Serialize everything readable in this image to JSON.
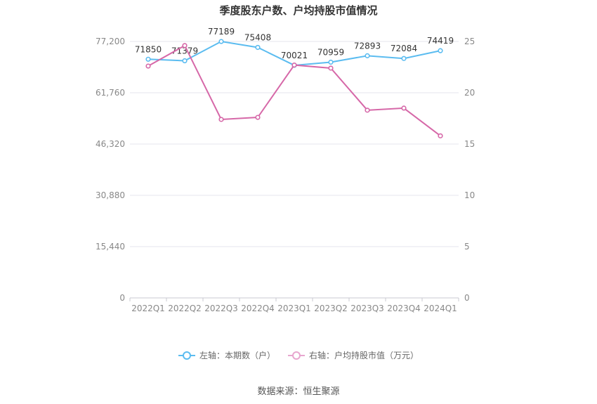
{
  "chart_data": {
    "type": "line",
    "title": "季度股东户数、户均持股市值情况",
    "categories": [
      "2022Q1",
      "2022Q2",
      "2022Q3",
      "2022Q4",
      "2023Q1",
      "2023Q2",
      "2023Q3",
      "2023Q4",
      "2024Q1"
    ],
    "left_axis": {
      "ticks": [
        "0",
        "15,440",
        "30,880",
        "46,320",
        "61,760",
        "77,200"
      ],
      "ylim": [
        0,
        77200
      ]
    },
    "right_axis": {
      "ticks": [
        "0",
        "5",
        "10",
        "15",
        "20",
        "25"
      ],
      "ylim": [
        0,
        25
      ]
    },
    "series": [
      {
        "name": "左轴：本期数（户）",
        "axis": "left",
        "color": "#5bbcf0",
        "values": [
          71850,
          71379,
          77189,
          75408,
          70021,
          70959,
          72893,
          72084,
          74419
        ],
        "labels": [
          "71850",
          "71379",
          "77189",
          "75408",
          "70021",
          "70959",
          "72893",
          "72084",
          "74419"
        ]
      },
      {
        "name": "右轴：户均持股市值（万元）",
        "axis": "right",
        "color": "#d668a8",
        "values": [
          22.6,
          24.6,
          17.4,
          17.6,
          22.7,
          22.4,
          18.3,
          18.5,
          15.8
        ]
      }
    ],
    "legend_position": "bottom-center",
    "grid": true
  },
  "source_text": "数据来源：恒生聚源"
}
